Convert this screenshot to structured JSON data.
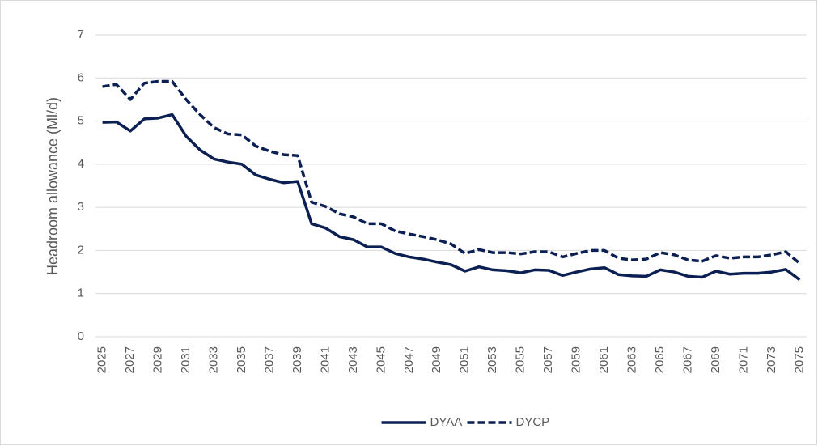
{
  "chart_data": {
    "type": "line",
    "y_label": "Headroom allowance (Ml/d)",
    "categories": [
      "2025",
      null,
      "2027",
      null,
      "2029",
      null,
      "2031",
      null,
      "2033",
      null,
      "2035",
      null,
      "2037",
      null,
      "2039",
      null,
      "2041",
      null,
      "2043",
      null,
      "2045",
      null,
      "2047",
      null,
      "2049",
      null,
      "2051",
      null,
      "2053",
      null,
      "2055",
      null,
      "2057",
      null,
      "2059",
      null,
      "2061",
      null,
      "2063",
      null,
      "2065",
      null,
      "2067",
      null,
      "2069",
      null,
      "2071",
      null,
      "2073",
      null,
      "2075"
    ],
    "series": [
      {
        "name": "DYAA",
        "color": "#0b1f52",
        "dashed": false,
        "values": [
          4.97,
          4.98,
          4.77,
          5.05,
          5.07,
          5.15,
          4.65,
          4.33,
          4.12,
          4.05,
          4.0,
          3.75,
          3.65,
          3.57,
          3.6,
          2.62,
          2.52,
          2.32,
          2.25,
          2.08,
          2.08,
          1.93,
          1.85,
          1.8,
          1.73,
          1.67,
          1.52,
          1.62,
          1.55,
          1.53,
          1.48,
          1.55,
          1.54,
          1.42,
          1.5,
          1.57,
          1.6,
          1.44,
          1.41,
          1.4,
          1.55,
          1.5,
          1.4,
          1.38,
          1.52,
          1.45,
          1.47,
          1.47,
          1.5,
          1.56,
          1.32
        ]
      },
      {
        "name": "DYCP",
        "color": "#0b1f52",
        "dashed": true,
        "values": [
          5.8,
          5.85,
          5.5,
          5.88,
          5.92,
          5.92,
          5.5,
          5.15,
          4.85,
          4.7,
          4.68,
          4.42,
          4.3,
          4.22,
          4.2,
          3.12,
          3.02,
          2.85,
          2.78,
          2.62,
          2.62,
          2.45,
          2.38,
          2.32,
          2.25,
          2.15,
          1.93,
          2.02,
          1.95,
          1.95,
          1.92,
          1.97,
          1.97,
          1.85,
          1.93,
          2.0,
          2.0,
          1.82,
          1.78,
          1.8,
          1.95,
          1.9,
          1.78,
          1.75,
          1.88,
          1.82,
          1.85,
          1.85,
          1.9,
          1.97,
          1.7
        ]
      }
    ],
    "ylim": [
      0,
      7
    ],
    "yticks": [
      0,
      1,
      2,
      3,
      4,
      5,
      6,
      7
    ],
    "grid": true,
    "legend": "bottom"
  }
}
